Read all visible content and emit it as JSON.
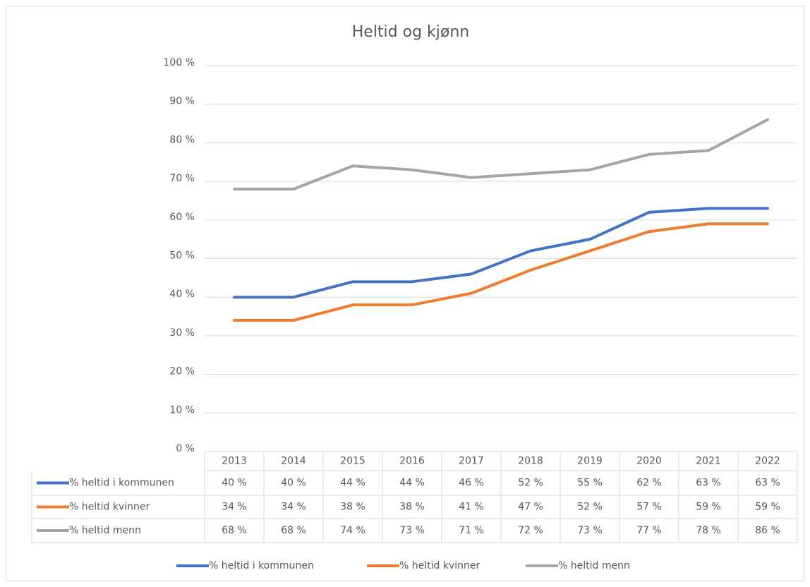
{
  "chart_data": {
    "type": "line",
    "title": "Heltid og kjønn",
    "categories": [
      "2013",
      "2014",
      "2015",
      "2016",
      "2017",
      "2018",
      "2019",
      "2020",
      "2021",
      "2022"
    ],
    "series": [
      {
        "name": "% heltid i kommunen",
        "color": "#4472c4",
        "values": [
          40,
          40,
          44,
          44,
          46,
          52,
          55,
          62,
          63,
          63
        ],
        "value_labels": [
          "40 %",
          "40 %",
          "44 %",
          "44 %",
          "46 %",
          "52 %",
          "55 %",
          "62 %",
          "63 %",
          "63 %"
        ]
      },
      {
        "name": "% heltid kvinner",
        "color": "#ed7d31",
        "values": [
          34,
          34,
          38,
          38,
          41,
          47,
          52,
          57,
          59,
          59
        ],
        "value_labels": [
          "34 %",
          "34 %",
          "38 %",
          "38 %",
          "41 %",
          "47 %",
          "52 %",
          "57 %",
          "59 %",
          "59 %"
        ]
      },
      {
        "name": "% heltid menn",
        "color": "#a5a5a5",
        "values": [
          68,
          68,
          74,
          73,
          71,
          72,
          73,
          77,
          78,
          86
        ],
        "value_labels": [
          "68 %",
          "68 %",
          "74 %",
          "73 %",
          "71 %",
          "72 %",
          "73 %",
          "77 %",
          "78 %",
          "86 %"
        ]
      }
    ],
    "ylim": [
      0,
      100
    ],
    "yticks": [
      {
        "value": 0,
        "label": "0 %"
      },
      {
        "value": 10,
        "label": "10 %"
      },
      {
        "value": 20,
        "label": "20 %"
      },
      {
        "value": 30,
        "label": "30 %"
      },
      {
        "value": 40,
        "label": "40 %"
      },
      {
        "value": 50,
        "label": "50 %"
      },
      {
        "value": 60,
        "label": "60 %"
      },
      {
        "value": 70,
        "label": "70 %"
      },
      {
        "value": 80,
        "label": "80 %"
      },
      {
        "value": 90,
        "label": "90 %"
      },
      {
        "value": 100,
        "label": "100 %"
      }
    ],
    "grid": true,
    "legend": "bottom"
  }
}
